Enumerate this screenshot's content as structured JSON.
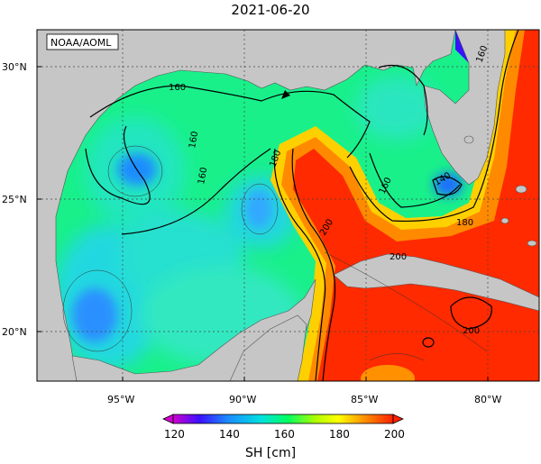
{
  "title": "2021-06-20",
  "credit": "NOAA/AOML",
  "lat_labels": [
    "30°N",
    "25°N",
    "20°N"
  ],
  "lon_labels": [
    "95°W",
    "90°W",
    "85°W",
    "80°W"
  ],
  "contour_labels": [
    "160",
    "160",
    "160",
    "160",
    "180",
    "200",
    "160",
    "140",
    "180",
    "200",
    "200"
  ],
  "colorbar": {
    "label": "SH [cm]",
    "ticks": [
      "120",
      "140",
      "160",
      "180",
      "200"
    ],
    "stops": [
      "#d000d0",
      "#3a10ff",
      "#1a8cff",
      "#00e0e0",
      "#00ff60",
      "#b0ff00",
      "#ffff00",
      "#ff9000",
      "#ff2000"
    ]
  },
  "colors": {
    "land": "#c6c6c6",
    "border": "#000000"
  }
}
